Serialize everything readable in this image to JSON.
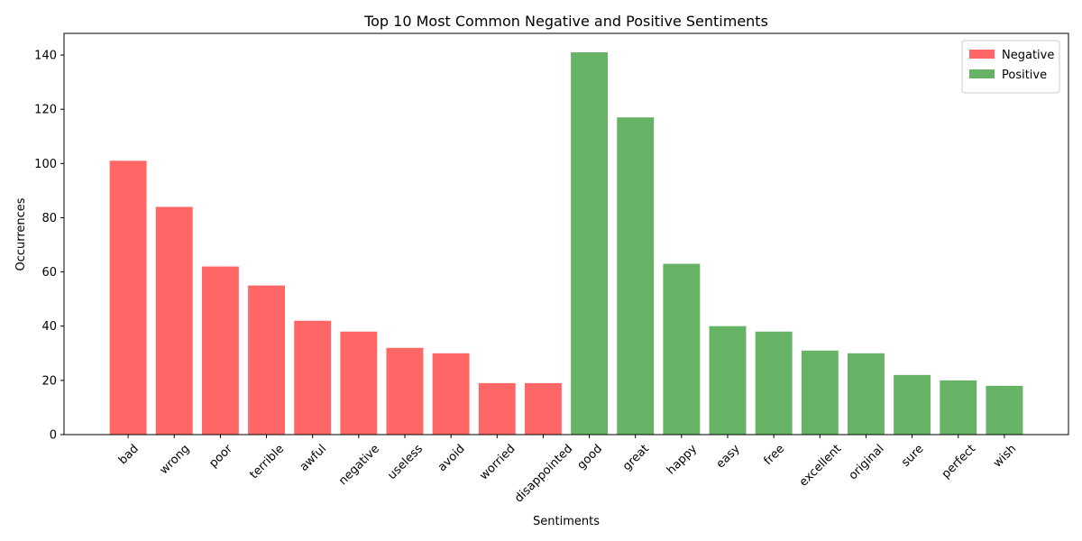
{
  "chart_data": {
    "type": "bar",
    "title": "Top 10 Most Common Negative and Positive Sentiments",
    "x_label": "Sentiments",
    "y_label": "Occurrences",
    "categories": [
      "bad",
      "wrong",
      "poor",
      "terrible",
      "awful",
      "negative",
      "useless",
      "avoid",
      "worried",
      "disappointed",
      "good",
      "great",
      "happy",
      "easy",
      "free",
      "excellent",
      "original",
      "sure",
      "perfect",
      "wish"
    ],
    "series": [
      {
        "name": "Negative",
        "color": "#ff6666",
        "values": [
          101,
          84,
          62,
          55,
          42,
          38,
          32,
          30,
          19,
          19,
          null,
          null,
          null,
          null,
          null,
          null,
          null,
          null,
          null,
          null
        ]
      },
      {
        "name": "Positive",
        "color": "#66b366",
        "values": [
          null,
          null,
          null,
          null,
          null,
          null,
          null,
          null,
          null,
          null,
          141,
          117,
          63,
          40,
          38,
          31,
          30,
          22,
          20,
          18
        ]
      }
    ],
    "ylim": [
      0,
      148
    ],
    "yticks": [
      0,
      20,
      40,
      60,
      80,
      100,
      120,
      140
    ],
    "legend": "upper right"
  }
}
